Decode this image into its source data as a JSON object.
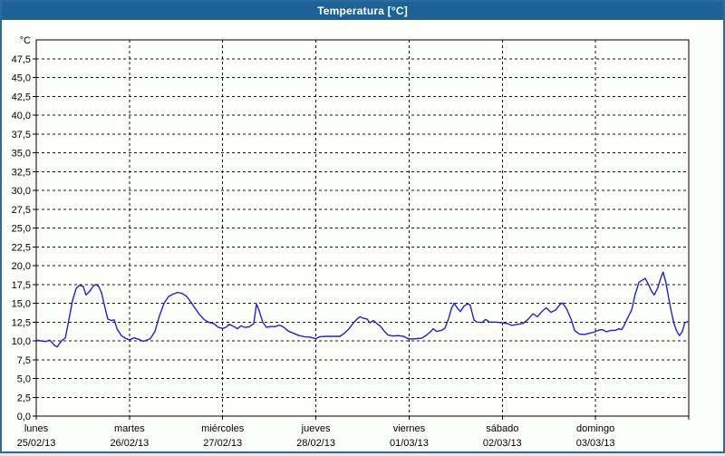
{
  "window": {
    "title": "Temperatura [°C]"
  },
  "colors": {
    "title_bar_bg": "#1d6295",
    "title_bar_text": "#ffffff",
    "window_border": "#2a6a9e",
    "content_bg": "#fbfef9",
    "grid_line": "#141414",
    "axis_border": "#000000",
    "series_line": "#2323bb"
  },
  "chart_data": {
    "type": "line",
    "title": "Temperatura [°C]",
    "unit_label": "°C",
    "grid": true,
    "legend": "none",
    "y_axis": {
      "min": 0,
      "max": 50,
      "tick_step": 2.5,
      "tick_labels": [
        "0,0",
        "2,5",
        "5,0",
        "7,5",
        "10,0",
        "12,5",
        "15,0",
        "17,5",
        "20,0",
        "22,5",
        "25,0",
        "27,5",
        "30,0",
        "32,5",
        "35,0",
        "37,5",
        "40,0",
        "42,5",
        "45,0",
        "47,5"
      ]
    },
    "x_axis": {
      "unit": "hours_from_monday_00h",
      "range_hours": [
        0,
        168
      ],
      "days": [
        {
          "name": "lunes",
          "date": "25/02/13"
        },
        {
          "name": "martes",
          "date": "26/02/13"
        },
        {
          "name": "miércoles",
          "date": "27/02/13"
        },
        {
          "name": "jueves",
          "date": "28/02/13"
        },
        {
          "name": "viernes",
          "date": "01/03/13"
        },
        {
          "name": "sábado",
          "date": "02/03/13"
        },
        {
          "name": "domingo",
          "date": "03/03/13"
        }
      ]
    },
    "series": [
      {
        "name": "Temperatura",
        "color": "#2323bb",
        "points": [
          [
            0,
            10.1
          ],
          [
            1.2,
            10.0
          ],
          [
            2.3,
            9.9
          ],
          [
            3.5,
            10.1
          ],
          [
            4.7,
            9.4
          ],
          [
            5.4,
            9.2
          ],
          [
            6.5,
            10.0
          ],
          [
            7.5,
            10.4
          ],
          [
            8.4,
            12.8
          ],
          [
            9.3,
            15.3
          ],
          [
            10.3,
            17.0
          ],
          [
            11.2,
            17.4
          ],
          [
            12.1,
            17.2
          ],
          [
            12.8,
            16.1
          ],
          [
            13.8,
            16.6
          ],
          [
            14.7,
            17.3
          ],
          [
            15.4,
            17.5
          ],
          [
            16.1,
            17.2
          ],
          [
            16.8,
            16.4
          ],
          [
            17.7,
            14.4
          ],
          [
            18.4,
            12.9
          ],
          [
            19.4,
            12.7
          ],
          [
            20.1,
            12.8
          ],
          [
            20.8,
            11.6
          ],
          [
            21.9,
            10.7
          ],
          [
            23.1,
            10.3
          ],
          [
            24,
            10.15
          ],
          [
            25.2,
            10.4
          ],
          [
            26.4,
            10.2
          ],
          [
            27.5,
            9.95
          ],
          [
            28.5,
            10.1
          ],
          [
            29.4,
            10.3
          ],
          [
            30.6,
            11.3
          ],
          [
            31.7,
            13.3
          ],
          [
            32.9,
            15.0
          ],
          [
            34.1,
            15.9
          ],
          [
            35.2,
            16.2
          ],
          [
            36.4,
            16.45
          ],
          [
            37.6,
            16.3
          ],
          [
            38.7,
            15.9
          ],
          [
            39.9,
            15.1
          ],
          [
            40.8,
            14.4
          ],
          [
            42,
            13.5
          ],
          [
            43.2,
            12.85
          ],
          [
            44.3,
            12.5
          ],
          [
            45.7,
            12.3
          ],
          [
            46.9,
            11.8
          ],
          [
            48,
            11.65
          ],
          [
            48.8,
            11.8
          ],
          [
            49.7,
            12.2
          ],
          [
            50.9,
            11.9
          ],
          [
            51.8,
            11.6
          ],
          [
            52.7,
            12.0
          ],
          [
            53.7,
            11.8
          ],
          [
            54.8,
            11.85
          ],
          [
            56,
            12.3
          ],
          [
            56.7,
            14.9
          ],
          [
            57.4,
            14.0
          ],
          [
            58.3,
            12.5
          ],
          [
            59.3,
            11.8
          ],
          [
            60.4,
            11.9
          ],
          [
            61.6,
            11.9
          ],
          [
            62.5,
            12.1
          ],
          [
            63.5,
            11.9
          ],
          [
            64.9,
            11.3
          ],
          [
            66.3,
            11.0
          ],
          [
            67.7,
            10.7
          ],
          [
            69.1,
            10.55
          ],
          [
            70.5,
            10.5
          ],
          [
            72,
            10.3
          ],
          [
            73,
            10.55
          ],
          [
            74.7,
            10.6
          ],
          [
            76.5,
            10.6
          ],
          [
            78.2,
            10.6
          ],
          [
            79.3,
            11.0
          ],
          [
            80.5,
            11.6
          ],
          [
            81.7,
            12.4
          ],
          [
            82.6,
            12.9
          ],
          [
            83.3,
            13.2
          ],
          [
            84.2,
            13.0
          ],
          [
            85.2,
            12.9
          ],
          [
            85.9,
            12.4
          ],
          [
            86.8,
            12.7
          ],
          [
            87.7,
            12.3
          ],
          [
            88.7,
            11.9
          ],
          [
            89.6,
            11.3
          ],
          [
            90.5,
            10.8
          ],
          [
            91.7,
            10.65
          ],
          [
            93.3,
            10.7
          ],
          [
            94.5,
            10.6
          ],
          [
            95.7,
            10.3
          ],
          [
            96.8,
            10.25
          ],
          [
            98,
            10.3
          ],
          [
            99.2,
            10.35
          ],
          [
            100.3,
            10.7
          ],
          [
            101.5,
            11.2
          ],
          [
            102.2,
            11.6
          ],
          [
            103.1,
            11.25
          ],
          [
            104.3,
            11.4
          ],
          [
            105.2,
            11.65
          ],
          [
            106.2,
            13.0
          ],
          [
            106.9,
            14.3
          ],
          [
            107.6,
            15.0
          ],
          [
            108.5,
            14.3
          ],
          [
            109.2,
            13.9
          ],
          [
            110.1,
            14.6
          ],
          [
            111,
            14.9
          ],
          [
            111.7,
            14.8
          ],
          [
            112.7,
            12.8
          ],
          [
            113.4,
            12.5
          ],
          [
            114.8,
            12.45
          ],
          [
            115.7,
            12.85
          ],
          [
            116.7,
            12.5
          ],
          [
            118.3,
            12.5
          ],
          [
            120,
            12.4
          ],
          [
            121.3,
            12.3
          ],
          [
            122.5,
            12.05
          ],
          [
            123.9,
            12.2
          ],
          [
            125.3,
            12.3
          ],
          [
            126.7,
            12.9
          ],
          [
            127.9,
            13.6
          ],
          [
            129,
            13.2
          ],
          [
            130.2,
            13.9
          ],
          [
            131.3,
            14.4
          ],
          [
            132.5,
            13.8
          ],
          [
            133.7,
            14.1
          ],
          [
            134.8,
            14.8
          ],
          [
            135.5,
            15.05
          ],
          [
            136.5,
            14.3
          ],
          [
            137.7,
            12.9
          ],
          [
            138.6,
            11.4
          ],
          [
            139.8,
            10.9
          ],
          [
            141.2,
            10.85
          ],
          [
            142.3,
            11.0
          ],
          [
            143.5,
            11.15
          ],
          [
            144,
            11.25
          ],
          [
            144.9,
            11.45
          ],
          [
            145.8,
            11.5
          ],
          [
            146.8,
            11.2
          ],
          [
            147.9,
            11.4
          ],
          [
            149.1,
            11.4
          ],
          [
            150,
            11.6
          ],
          [
            150.7,
            11.5
          ],
          [
            151.4,
            12.1
          ],
          [
            152.3,
            13.1
          ],
          [
            153.3,
            14.1
          ],
          [
            154.2,
            16.2
          ],
          [
            155.2,
            17.8
          ],
          [
            156.1,
            18.1
          ],
          [
            156.8,
            18.3
          ],
          [
            157.7,
            17.4
          ],
          [
            158.4,
            16.6
          ],
          [
            159.1,
            16.1
          ],
          [
            160,
            17.0
          ],
          [
            160.7,
            18.2
          ],
          [
            161.4,
            19.15
          ],
          [
            162.1,
            17.8
          ],
          [
            162.8,
            15.8
          ],
          [
            163.5,
            13.9
          ],
          [
            164.2,
            12.3
          ],
          [
            164.9,
            11.3
          ],
          [
            165.6,
            10.7
          ],
          [
            166.3,
            11.2
          ],
          [
            167,
            12.4
          ],
          [
            167.7,
            12.55
          ]
        ]
      }
    ]
  }
}
